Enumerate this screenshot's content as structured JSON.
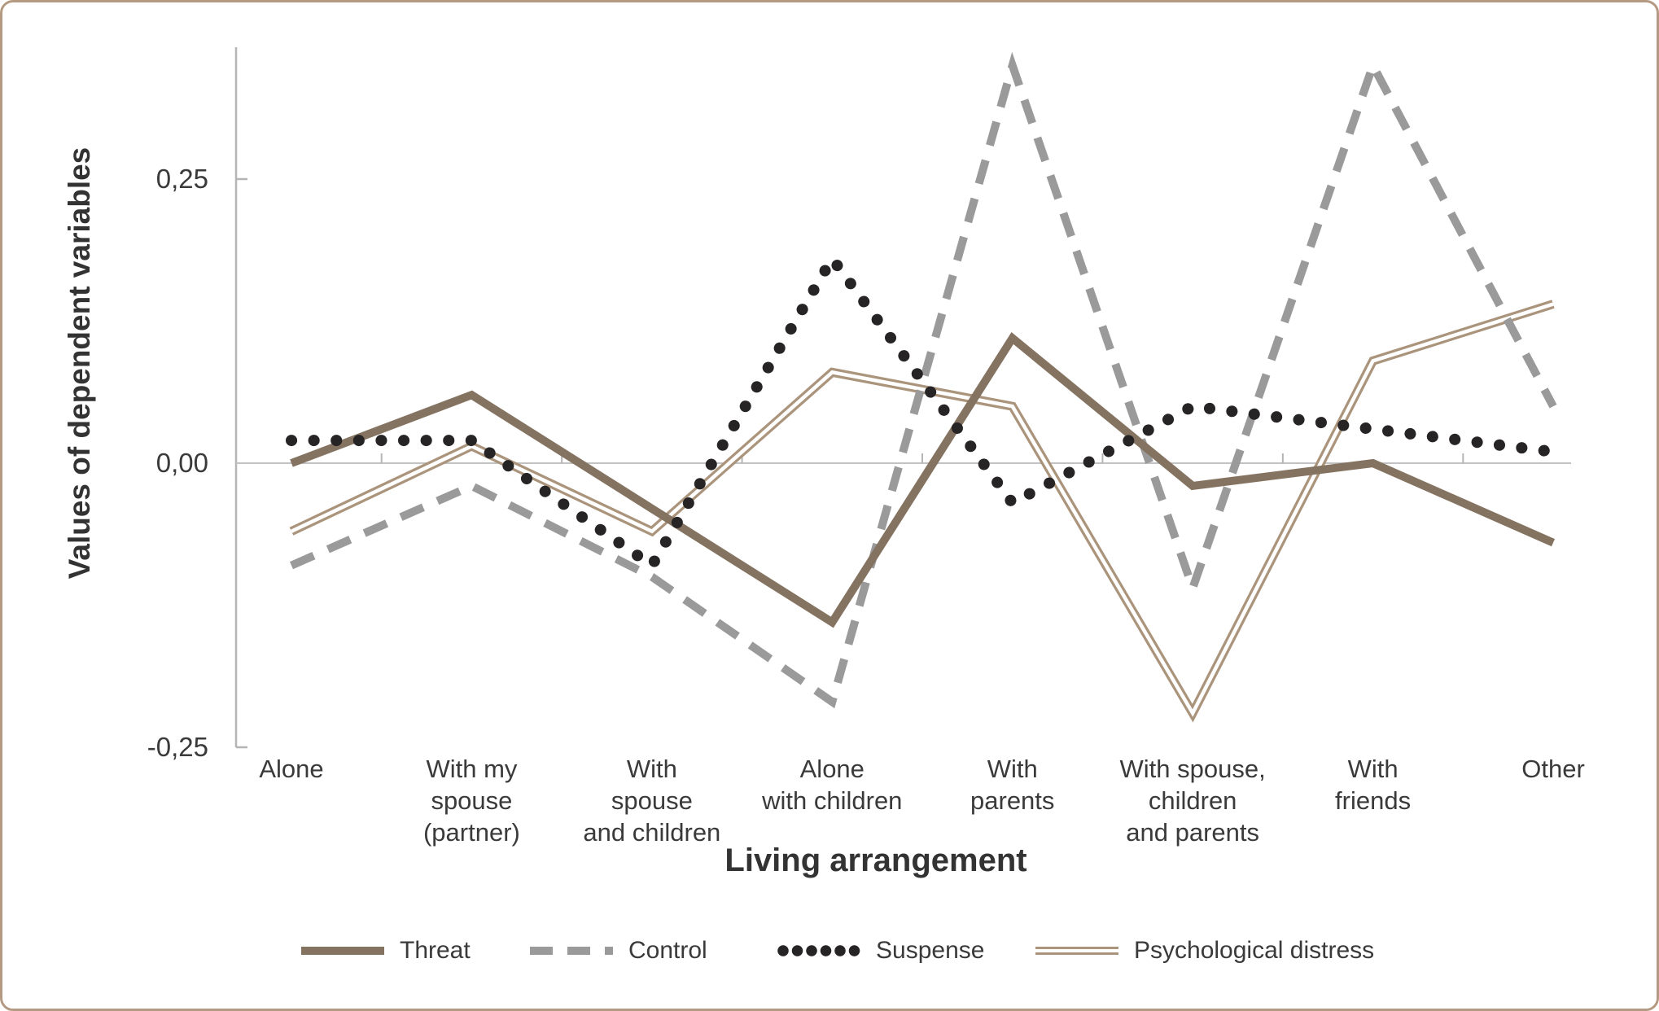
{
  "figure": {
    "background_color": "#ffffff",
    "border_color": "#b49a82",
    "axis_color": "#b5b5b5",
    "zero_line_color": "#c2c2c2",
    "text_color": "#3a3a3a"
  },
  "chart_data": {
    "type": "line",
    "title": "",
    "xlabel": "Living arrangement",
    "ylabel": "Values of dependent variables",
    "categories": [
      "Alone",
      "With my\nspouse\n(partner)",
      "With\nspouse\nand children",
      "Alone\nwith children",
      "With\nparents",
      "With spouse,\nchildren\nand parents",
      "With\nfriends",
      "Other"
    ],
    "y_ticks": [
      {
        "value": 0.25,
        "label": "0,25"
      },
      {
        "value": 0.0,
        "label": "0,00"
      },
      {
        "value": -0.25,
        "label": "-0,25"
      }
    ],
    "ylim": [
      -0.25,
      0.37
    ],
    "grid": false,
    "zero_reference_line": true,
    "legend_position": "bottom",
    "series": [
      {
        "name": "Threat",
        "style": "solid",
        "color": "#857361",
        "values": [
          0.0,
          0.06,
          -0.04,
          -0.14,
          0.11,
          -0.02,
          0.0,
          -0.07
        ]
      },
      {
        "name": "Control",
        "style": "dashed",
        "color": "#9a9a9a",
        "values": [
          -0.09,
          -0.02,
          -0.1,
          -0.21,
          0.35,
          -0.11,
          0.35,
          0.05
        ]
      },
      {
        "name": "Suspense",
        "style": "dotted",
        "color": "#262424",
        "values": [
          0.02,
          0.02,
          -0.09,
          0.18,
          -0.035,
          0.05,
          0.03,
          0.01
        ]
      },
      {
        "name": "Psychological distress",
        "style": "double",
        "color": "#ab947c",
        "values": [
          -0.06,
          0.015,
          -0.06,
          0.08,
          0.05,
          -0.22,
          0.09,
          0.14
        ]
      }
    ]
  }
}
